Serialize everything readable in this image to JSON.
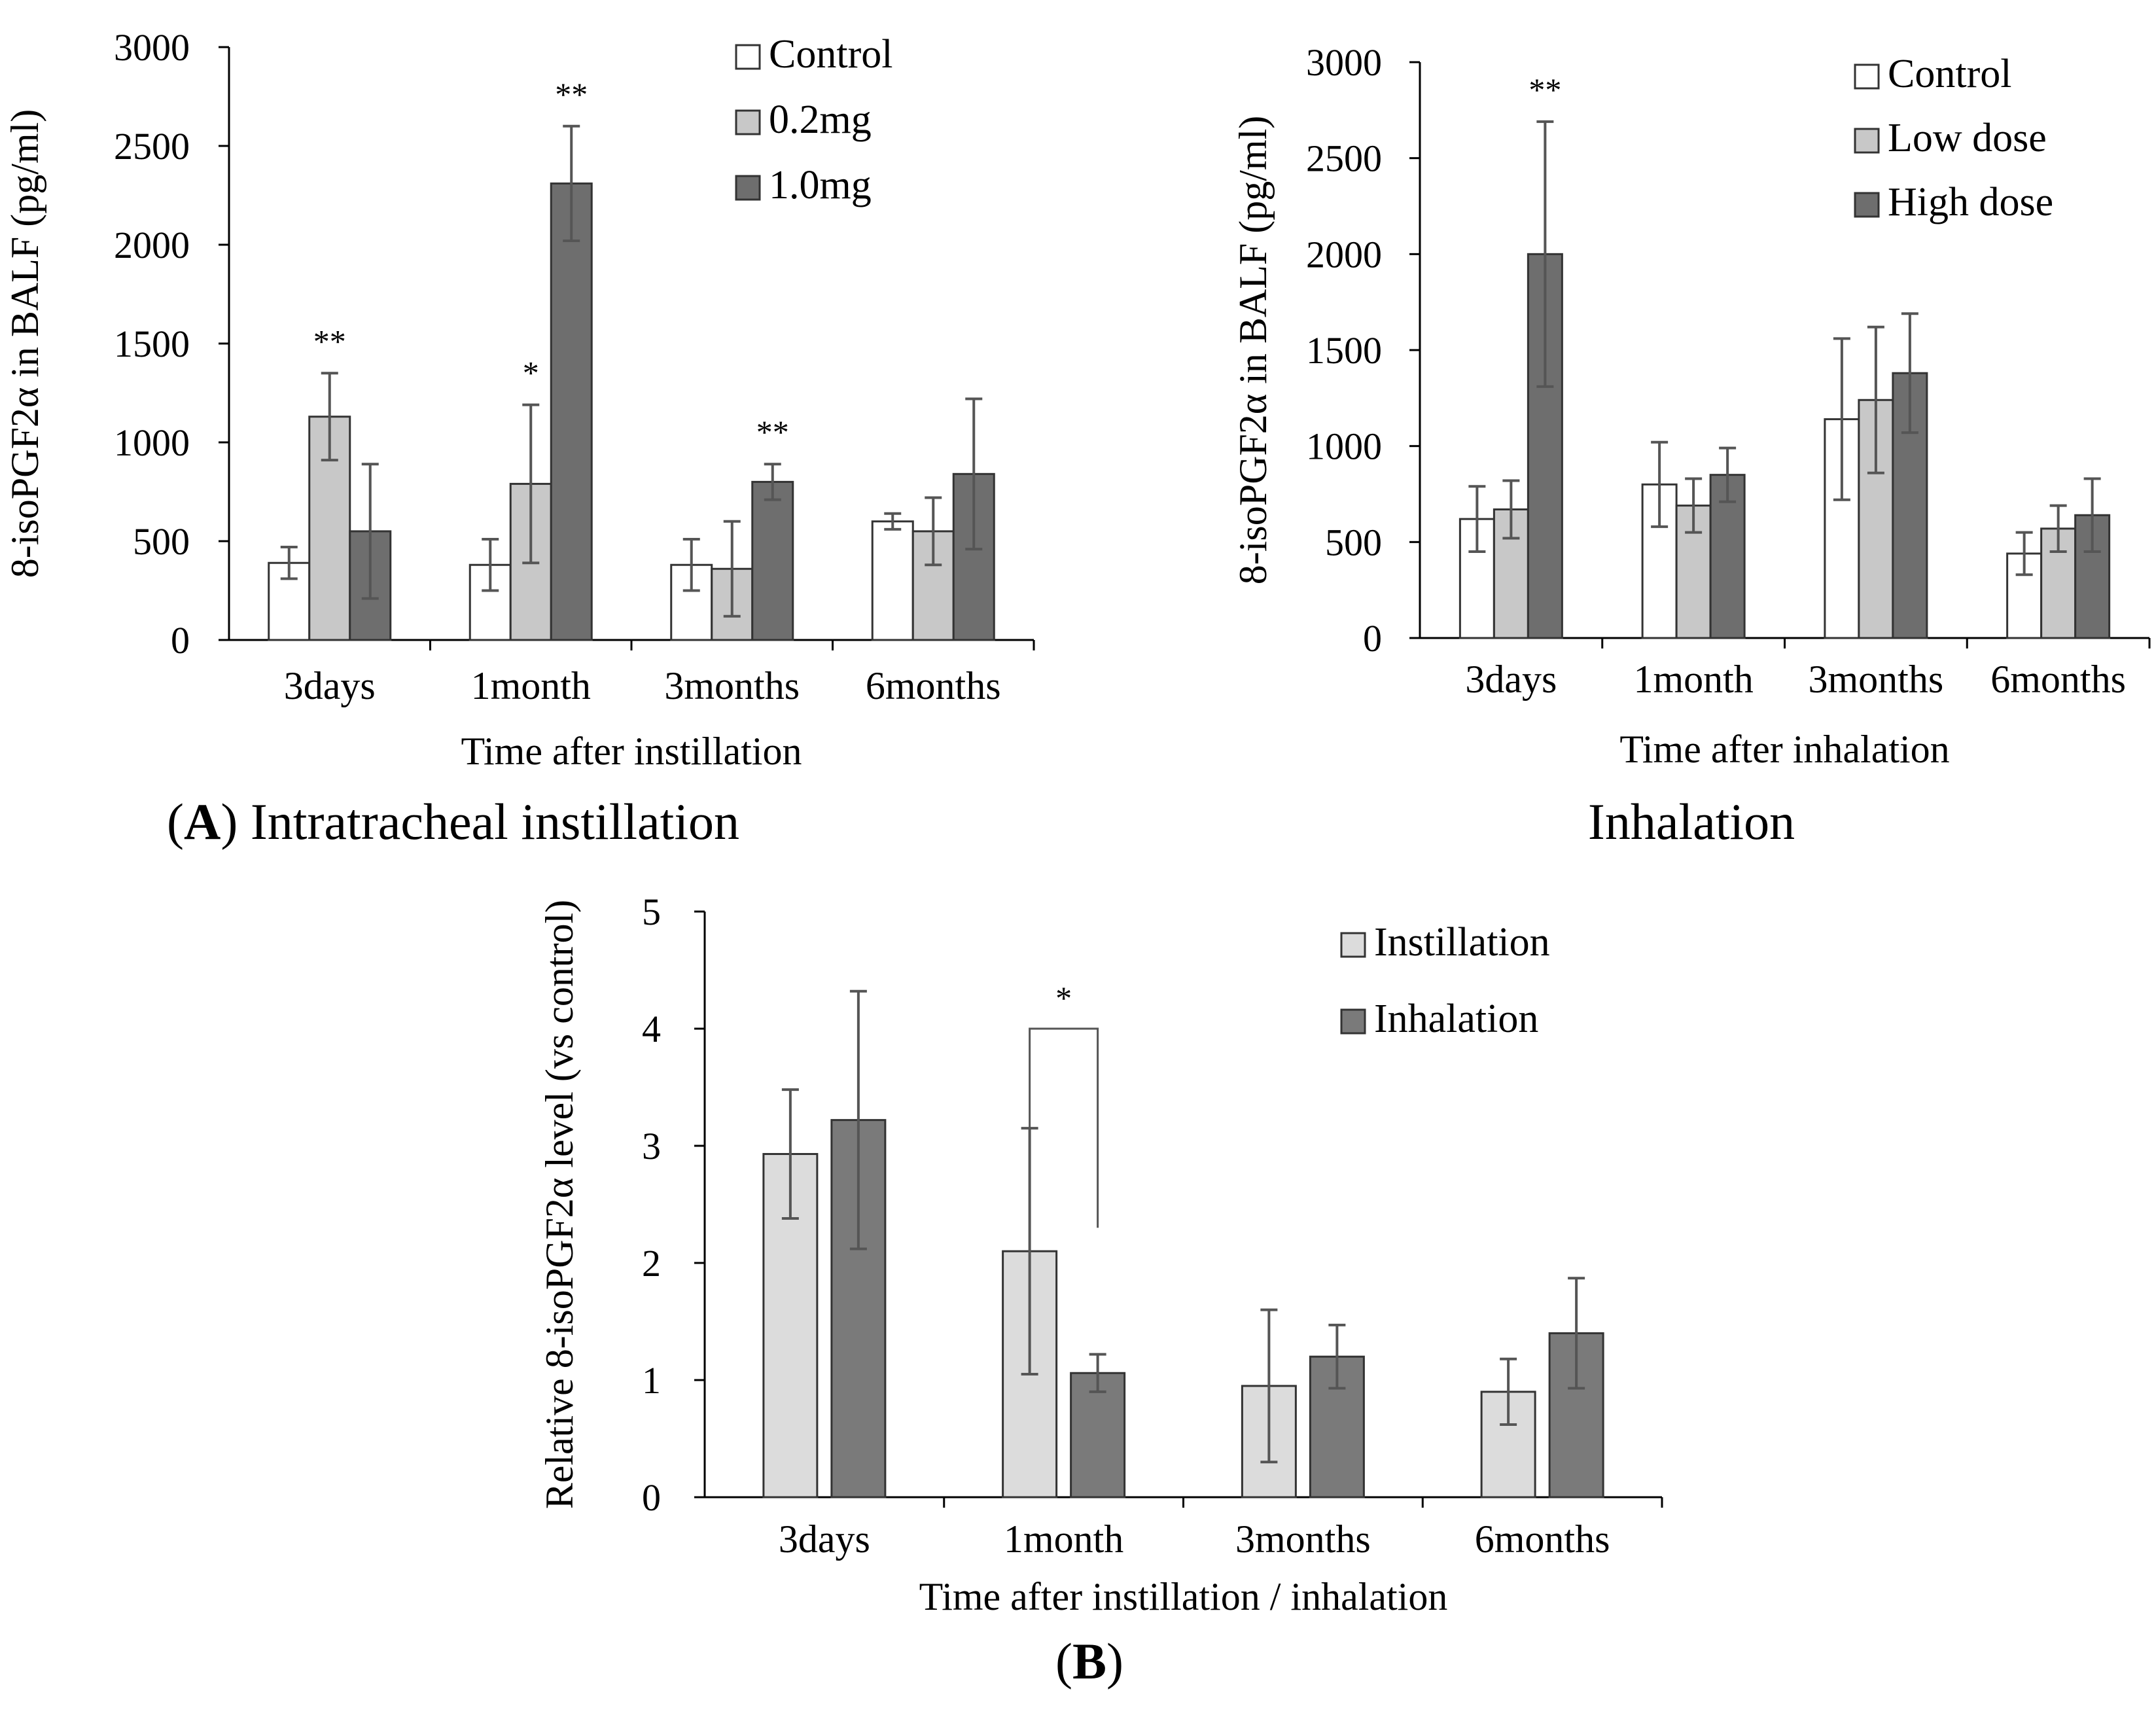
{
  "chart_data": [
    {
      "id": "A-instillation",
      "type": "bar",
      "ylabel": "8-isoPGF2α in BALF (pg/ml)",
      "xlabel": "Time after instillation",
      "caption_letter": "A",
      "caption_text": "Intratracheal instillation",
      "ylim": [
        0,
        3000
      ],
      "yticks": [
        0,
        500,
        1000,
        1500,
        2000,
        2500,
        3000
      ],
      "categories": [
        "3days",
        "1month",
        "3months",
        "6months"
      ],
      "legend_position": "top-right",
      "series": [
        {
          "name": "Control",
          "color": "#ffffff",
          "values": [
            390,
            380,
            380,
            600
          ],
          "errors": [
            80,
            130,
            130,
            40
          ]
        },
        {
          "name": "0.2mg",
          "color": "#c8c8c8",
          "values": [
            1130,
            790,
            360,
            550
          ],
          "errors": [
            220,
            400,
            240,
            170
          ]
        },
        {
          "name": "1.0mg",
          "color": "#6e6e6e",
          "values": [
            550,
            2310,
            800,
            840
          ],
          "errors": [
            340,
            290,
            90,
            380
          ]
        }
      ],
      "annotations": [
        {
          "category": "3days",
          "series": "0.2mg",
          "text": "**"
        },
        {
          "category": "1month",
          "series": "0.2mg",
          "text": "*"
        },
        {
          "category": "1month",
          "series": "1.0mg",
          "text": "**"
        },
        {
          "category": "3months",
          "series": "1.0mg",
          "text": "**"
        }
      ]
    },
    {
      "id": "A-inhalation",
      "type": "bar",
      "ylabel": "8-isoPGF2α in BALF (pg/ml)",
      "xlabel": "Time after inhalation",
      "caption_letter": "",
      "caption_text": "Inhalation",
      "ylim": [
        0,
        3000
      ],
      "yticks": [
        0,
        500,
        1000,
        1500,
        2000,
        2500,
        3000
      ],
      "categories": [
        "3days",
        "1month",
        "3months",
        "6months"
      ],
      "legend_position": "top-right",
      "series": [
        {
          "name": "Control",
          "color": "#ffffff",
          "values": [
            620,
            800,
            1140,
            440
          ],
          "errors": [
            170,
            220,
            420,
            110
          ]
        },
        {
          "name": "Low dose",
          "color": "#c8c8c8",
          "values": [
            670,
            690,
            1240,
            570
          ],
          "errors": [
            150,
            140,
            380,
            120
          ]
        },
        {
          "name": "High dose",
          "color": "#6e6e6e",
          "values": [
            2000,
            850,
            1380,
            640
          ],
          "errors": [
            690,
            140,
            310,
            190
          ]
        }
      ],
      "annotations": [
        {
          "category": "3days",
          "series": "High dose",
          "text": "**"
        }
      ]
    },
    {
      "id": "B-relative",
      "type": "bar",
      "ylabel": "Relative 8-isoPGF2α level (vs control)",
      "xlabel": "Time after instillation / inhalation",
      "caption_letter": "B",
      "caption_text": "",
      "ylim": [
        0,
        5
      ],
      "yticks": [
        0,
        1,
        2,
        3,
        4,
        5
      ],
      "categories": [
        "3days",
        "1month",
        "3months",
        "6months"
      ],
      "legend_position": "top-right",
      "series": [
        {
          "name": "Instillation",
          "color": "#dcdcdc",
          "values": [
            2.93,
            2.1,
            0.95,
            0.9
          ],
          "errors": [
            0.55,
            1.05,
            0.65,
            0.28
          ]
        },
        {
          "name": "Inhalation",
          "color": "#7a7a7a",
          "values": [
            3.22,
            1.06,
            1.2,
            1.4
          ],
          "errors": [
            1.1,
            0.16,
            0.27,
            0.47
          ]
        }
      ],
      "annotations": [
        {
          "category": "1month",
          "type": "bracket",
          "series": [
            "Instillation",
            "Inhalation"
          ],
          "text": "*"
        }
      ]
    }
  ]
}
